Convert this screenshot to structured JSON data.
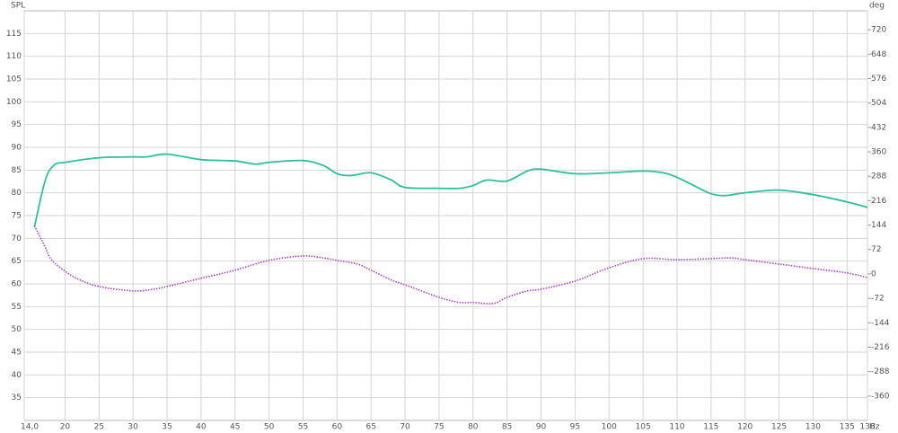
{
  "chart_data": {
    "type": "line",
    "ylabel": "SPL",
    "y2label": "deg",
    "xlabel": "Hz",
    "xlim": [
      14,
      138
    ],
    "xticks": [
      {
        "value": 14,
        "label": "14,0"
      },
      20,
      25,
      30,
      35,
      40,
      45,
      50,
      55,
      60,
      65,
      70,
      75,
      80,
      85,
      90,
      95,
      100,
      105,
      110,
      115,
      120,
      125,
      130,
      135,
      138
    ],
    "ylim": [
      30,
      120
    ],
    "yticks": [
      35,
      40,
      45,
      50,
      55,
      60,
      65,
      70,
      75,
      80,
      85,
      90,
      95,
      100,
      105,
      110,
      115
    ],
    "y2lim": [
      -432,
      776
    ],
    "y2ticks": [
      -360,
      -288,
      -216,
      -144,
      -72,
      0,
      72,
      144,
      216,
      288,
      360,
      432,
      504,
      576,
      648,
      720
    ],
    "grid": true,
    "series": [
      {
        "color": "#2dbf9f",
        "dash": false,
        "x": [
          15.5,
          17.1,
          18.4,
          20,
          25,
          30,
          32,
          35,
          40,
          45,
          48,
          50,
          55,
          58,
          60,
          62,
          65,
          68,
          70,
          75,
          78,
          80,
          82,
          85,
          88,
          90,
          95,
          100,
          105,
          108,
          110,
          113,
          115,
          117,
          120,
          125,
          130,
          135,
          138
        ],
        "values": [
          72.5,
          82.8,
          86.1,
          86.7,
          87.7,
          87.9,
          87.9,
          88.5,
          87.3,
          87,
          86.3,
          86.7,
          87.1,
          86,
          84.2,
          83.8,
          84.4,
          82.8,
          81.2,
          81,
          81,
          81.6,
          82.8,
          82.6,
          84.8,
          85.2,
          84.2,
          84.4,
          84.8,
          84.4,
          83.4,
          81.2,
          79.8,
          79.4,
          80,
          80.6,
          79.6,
          78,
          76.8
        ]
      },
      {
        "color": "#b23fe0",
        "dash": true,
        "axis": "y2",
        "x": [
          15.5,
          17,
          18,
          20,
          22,
          25,
          30,
          33,
          35,
          40,
          45,
          50,
          55,
          58,
          60,
          63,
          65,
          68,
          70,
          75,
          78,
          80,
          83,
          85,
          88,
          90,
          95,
          100,
          105,
          110,
          115,
          118,
          120,
          125,
          130,
          135,
          138
        ],
        "values": [
          142,
          82,
          42,
          8,
          -16,
          -37,
          -50,
          -45,
          -37,
          -13,
          11,
          40,
          53,
          47,
          40,
          29,
          11,
          -18,
          -32,
          -69,
          -84,
          -84,
          -87,
          -69,
          -50,
          -45,
          -21,
          18,
          45,
          42,
          45,
          47,
          42,
          29,
          16,
          3,
          -11
        ]
      }
    ]
  }
}
